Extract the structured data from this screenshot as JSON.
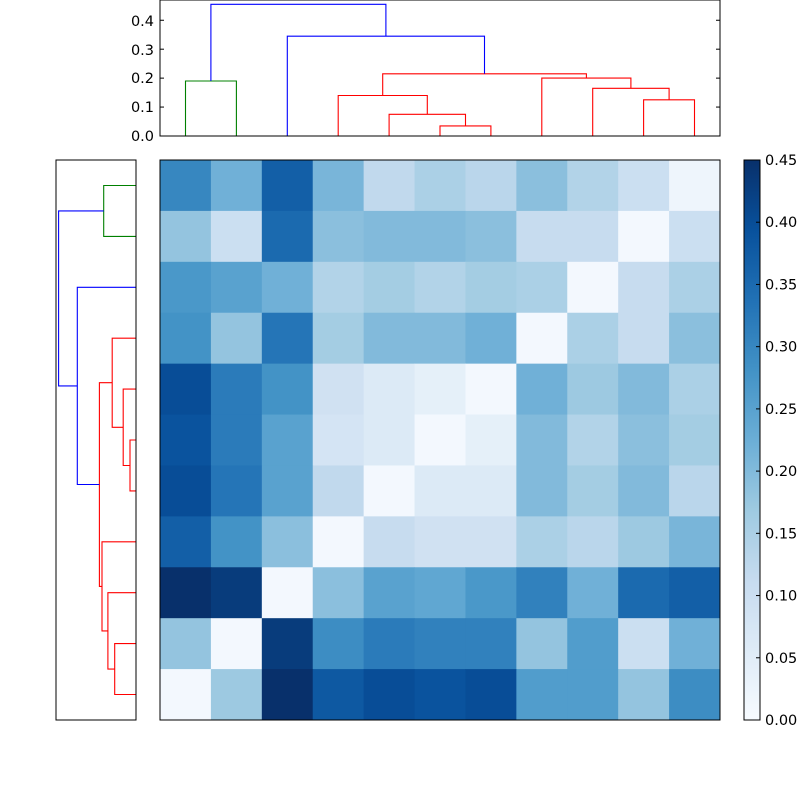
{
  "chart_data": [
    {
      "type": "heatmap",
      "title": "",
      "xlabel": "",
      "ylabel": "",
      "rows": 11,
      "cols": 11,
      "values": [
        [
          0.3,
          0.22,
          0.37,
          0.21,
          0.12,
          0.15,
          0.13,
          0.19,
          0.14,
          0.1,
          0.02
        ],
        [
          0.18,
          0.1,
          0.35,
          0.19,
          0.2,
          0.2,
          0.19,
          0.11,
          0.11,
          0.01,
          0.1
        ],
        [
          0.27,
          0.25,
          0.22,
          0.14,
          0.16,
          0.14,
          0.16,
          0.15,
          0.01,
          0.11,
          0.15
        ],
        [
          0.28,
          0.18,
          0.33,
          0.16,
          0.2,
          0.2,
          0.22,
          0.01,
          0.15,
          0.11,
          0.19
        ],
        [
          0.4,
          0.32,
          0.28,
          0.09,
          0.06,
          0.04,
          0.01,
          0.22,
          0.17,
          0.2,
          0.15
        ],
        [
          0.39,
          0.32,
          0.25,
          0.08,
          0.06,
          0.01,
          0.04,
          0.2,
          0.14,
          0.19,
          0.16
        ],
        [
          0.4,
          0.33,
          0.25,
          0.12,
          0.01,
          0.06,
          0.06,
          0.2,
          0.16,
          0.2,
          0.13
        ],
        [
          0.37,
          0.28,
          0.19,
          0.01,
          0.11,
          0.09,
          0.09,
          0.15,
          0.13,
          0.17,
          0.21
        ],
        [
          0.45,
          0.43,
          0.01,
          0.19,
          0.25,
          0.24,
          0.27,
          0.31,
          0.22,
          0.35,
          0.37
        ],
        [
          0.18,
          0.01,
          0.43,
          0.29,
          0.32,
          0.31,
          0.31,
          0.18,
          0.26,
          0.1,
          0.22
        ],
        [
          0.01,
          0.17,
          0.45,
          0.38,
          0.4,
          0.39,
          0.4,
          0.26,
          0.26,
          0.18,
          0.29
        ]
      ],
      "colorbar": {
        "range": [
          0,
          0.45
        ],
        "ticks": [
          "0.00",
          "0.05",
          "0.10",
          "0.15",
          "0.20",
          "0.25",
          "0.30",
          "0.35",
          "0.40",
          "0.45"
        ],
        "colormap": "Blues",
        "stops": [
          "#f7fbff",
          "#deebf7",
          "#c6dbef",
          "#9ecae1",
          "#6baed6",
          "#4292c6",
          "#2171b5",
          "#08519c",
          "#08306b"
        ]
      }
    },
    {
      "type": "dendrogram",
      "orientation": "top",
      "yaxis": {
        "range": [
          0,
          0.47
        ],
        "ticks": [
          "0.0",
          "0.1",
          "0.2",
          "0.3",
          "0.4"
        ]
      },
      "link_colors": [
        "green",
        "red",
        "blue"
      ],
      "links": [
        {
          "x": [
            0.5,
            0.5,
            1.5,
            1.5
          ],
          "y": [
            0,
            0.19,
            0.19,
            0
          ],
          "color": "#008000"
        },
        {
          "x": [
            5.5,
            5.5,
            6.5,
            6.5
          ],
          "y": [
            0,
            0.035,
            0.035,
            0
          ],
          "color": "#ff0000"
        },
        {
          "x": [
            4.5,
            4.5,
            6.0,
            6.0
          ],
          "y": [
            0,
            0.075,
            0.075,
            0.035
          ],
          "color": "#ff0000"
        },
        {
          "x": [
            3.5,
            3.5,
            5.25,
            5.25
          ],
          "y": [
            0,
            0.14,
            0.14,
            0.075
          ],
          "color": "#ff0000"
        },
        {
          "x": [
            9.5,
            9.5,
            10.5,
            10.5
          ],
          "y": [
            0,
            0.125,
            0.125,
            0
          ],
          "color": "#ff0000"
        },
        {
          "x": [
            8.5,
            8.5,
            10.0,
            10.0
          ],
          "y": [
            0,
            0.165,
            0.165,
            0.125
          ],
          "color": "#ff0000"
        },
        {
          "x": [
            7.5,
            7.5,
            9.25,
            9.25
          ],
          "y": [
            0,
            0.2,
            0.2,
            0.165
          ],
          "color": "#ff0000"
        },
        {
          "x": [
            4.375,
            4.375,
            8.375,
            8.375
          ],
          "y": [
            0.14,
            0.215,
            0.215,
            0.2
          ],
          "color": "#ff0000"
        },
        {
          "x": [
            2.5,
            2.5,
            6.375,
            6.375
          ],
          "y": [
            0,
            0.345,
            0.345,
            0.215
          ],
          "color": "#0000ff"
        },
        {
          "x": [
            1.0,
            1.0,
            4.4375,
            4.4375
          ],
          "y": [
            0.19,
            0.455,
            0.455,
            0.345
          ],
          "color": "#0000ff"
        }
      ]
    },
    {
      "type": "dendrogram",
      "orientation": "left",
      "xaxis": {
        "range": [
          0,
          0.47
        ],
        "ticks": []
      },
      "links": [
        {
          "x": [
            0.5,
            0.5,
            1.5,
            1.5
          ],
          "y": [
            0,
            0.19,
            0.19,
            0
          ],
          "color": "#008000"
        },
        {
          "x": [
            5.5,
            5.5,
            6.5,
            6.5
          ],
          "y": [
            0,
            0.035,
            0.035,
            0
          ],
          "color": "#ff0000"
        },
        {
          "x": [
            4.5,
            4.5,
            6.0,
            6.0
          ],
          "y": [
            0,
            0.075,
            0.075,
            0.035
          ],
          "color": "#ff0000"
        },
        {
          "x": [
            3.5,
            3.5,
            5.25,
            5.25
          ],
          "y": [
            0,
            0.14,
            0.14,
            0.075
          ],
          "color": "#ff0000"
        },
        {
          "x": [
            9.5,
            9.5,
            10.5,
            10.5
          ],
          "y": [
            0,
            0.125,
            0.125,
            0
          ],
          "color": "#ff0000"
        },
        {
          "x": [
            8.5,
            8.5,
            10.0,
            10.0
          ],
          "y": [
            0,
            0.165,
            0.165,
            0.125
          ],
          "color": "#ff0000"
        },
        {
          "x": [
            7.5,
            7.5,
            9.25,
            9.25
          ],
          "y": [
            0,
            0.2,
            0.2,
            0.165
          ],
          "color": "#ff0000"
        },
        {
          "x": [
            4.375,
            4.375,
            8.375,
            8.375
          ],
          "y": [
            0.14,
            0.215,
            0.215,
            0.2
          ],
          "color": "#ff0000"
        },
        {
          "x": [
            2.5,
            2.5,
            6.375,
            6.375
          ],
          "y": [
            0,
            0.345,
            0.345,
            0.215
          ],
          "color": "#0000ff"
        },
        {
          "x": [
            1.0,
            1.0,
            4.4375,
            4.4375
          ],
          "y": [
            0.19,
            0.455,
            0.455,
            0.345
          ],
          "color": "#0000ff"
        }
      ]
    }
  ]
}
